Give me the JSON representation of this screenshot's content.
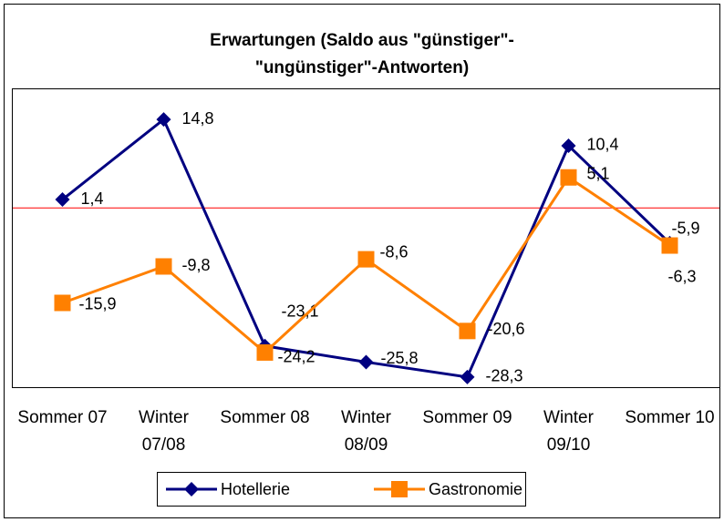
{
  "chart_data": {
    "type": "line",
    "title": "Erwartungen (Saldo aus \"günstiger\"- \"ungünstiger\"-Antworten)",
    "categories": [
      "Sommer 07",
      "Winter 07/08",
      "Sommer 08",
      "Winter 08/09",
      "Sommer 09",
      "Winter 09/10",
      "Sommer 10"
    ],
    "series": [
      {
        "name": "Hotellerie",
        "color": "#000080",
        "values": [
          1.4,
          14.8,
          -23.1,
          -25.8,
          -28.3,
          10.4,
          -5.9
        ],
        "value_labels": [
          "1,4",
          "14,8",
          "-23,1",
          "-25,8",
          "-28,3",
          "10,4",
          "-5,9"
        ]
      },
      {
        "name": "Gastronomie",
        "color": "#ff8000",
        "values": [
          -15.9,
          -9.8,
          -24.2,
          -8.6,
          -20.6,
          5.1,
          -6.3
        ],
        "value_labels": [
          "-15,9",
          "-9,8",
          "-24,2",
          "-8,6",
          "-20,6",
          "5,1",
          "-6,3"
        ]
      }
    ],
    "ylim": [
      -30,
      20
    ],
    "zero_line_color": "#ff0000"
  }
}
